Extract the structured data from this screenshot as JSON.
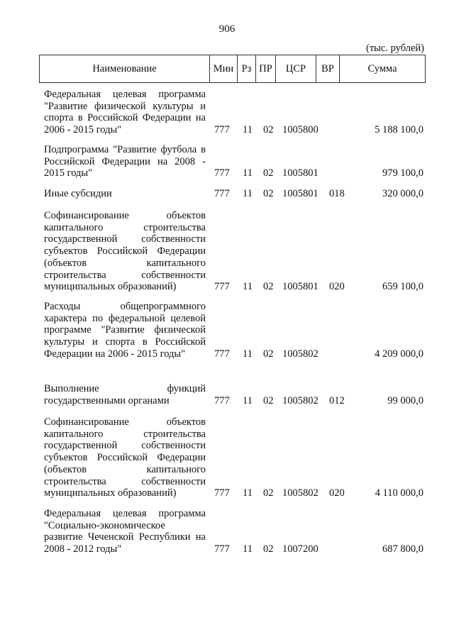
{
  "page_number": "906",
  "unit_note": "(тыс. рублей)",
  "headers": {
    "name": "Наименование",
    "min": "Мин",
    "rz": "Рз",
    "pr": "ПР",
    "csr": "ЦСР",
    "vr": "ВР",
    "sum": "Сумма"
  },
  "rows": [
    {
      "name": "Федеральная целевая программа \"Развитие физической культуры и спорта в Российской Федерации на 2006 - 2015 годы\"",
      "min": "777",
      "rz": "11",
      "pr": "02",
      "csr": "1005800",
      "vr": "",
      "sum": "5 188 100,0"
    },
    {
      "name": "Подпрограмма \"Развитие футбола в Российской Федерации на 2008 - 2015 годы\"",
      "min": "777",
      "rz": "11",
      "pr": "02",
      "csr": "1005801",
      "vr": "",
      "sum": "979 100,0"
    },
    {
      "name": "Иные субсидии",
      "min": "777",
      "rz": "11",
      "pr": "02",
      "csr": "1005801",
      "vr": "018",
      "sum": "320 000,0"
    },
    {
      "name": "Софинансирование объектов капитального строительства государственной собственности субъектов Российской Федерации (объектов капитального строительства собственности муниципальных образований)",
      "min": "777",
      "rz": "11",
      "pr": "02",
      "csr": "1005801",
      "vr": "020",
      "sum": "659 100,0"
    },
    {
      "name": "Расходы общепрограммного характера по федеральной целевой программе \"Развитие физической культуры и спорта в Российской Федерации на 2006 - 2015 годы\"",
      "min": "777",
      "rz": "11",
      "pr": "02",
      "csr": "1005802",
      "vr": "",
      "sum": "4 209 000,0"
    },
    {
      "name": "Выполнение функций государственными органами",
      "min": "777",
      "rz": "11",
      "pr": "02",
      "csr": "1005802",
      "vr": "012",
      "sum": "99 000,0"
    },
    {
      "name": "Софинансирование объектов капитального строительства государственной собственности субъектов Российской Федерации (объектов капитального строительства собственности муниципальных образований)",
      "min": "777",
      "rz": "11",
      "pr": "02",
      "csr": "1005802",
      "vr": "020",
      "sum": "4 110 000,0"
    },
    {
      "name": "Федеральная целевая программа \"Социально-экономическое развитие Чеченской Республики на 2008 - 2012 годы\"",
      "min": "777",
      "rz": "11",
      "pr": "02",
      "csr": "1007200",
      "vr": "",
      "sum": "687 800,0"
    }
  ]
}
